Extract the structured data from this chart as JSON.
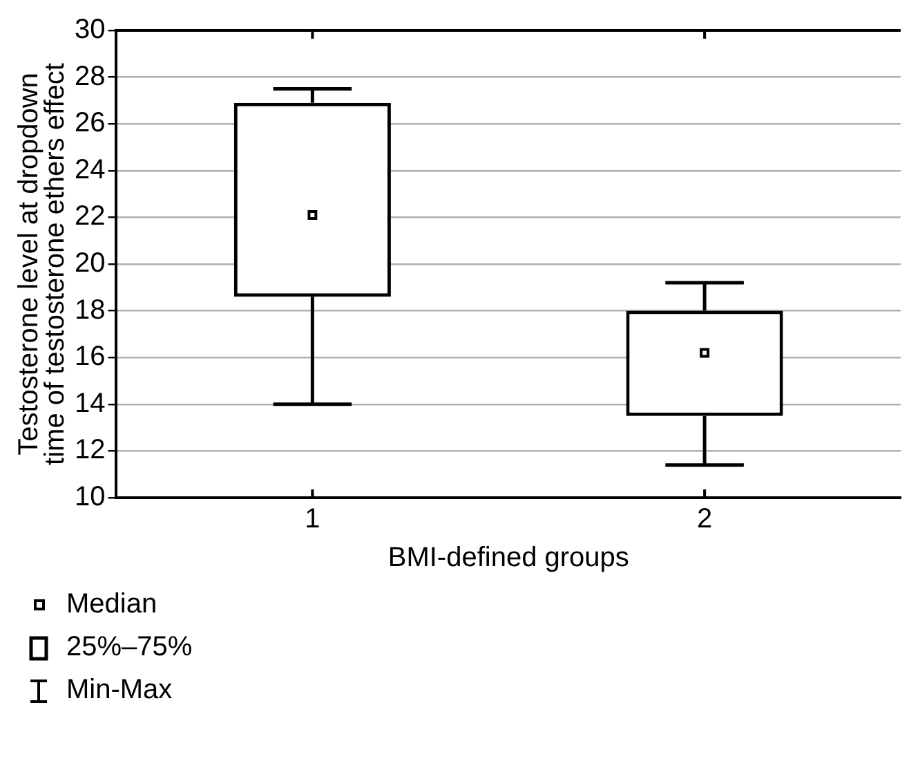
{
  "chart_data": {
    "type": "box",
    "xlabel": "BMI-defined groups",
    "ylabel": "Testosterone level at dropdown\ntime of testosterone ethers effect",
    "categories": [
      "1",
      "2"
    ],
    "series": [
      {
        "color": "#000000",
        "boxes": [
          {
            "low": 14.0,
            "q1": 18.6,
            "median": 22.1,
            "q3": 26.9,
            "high": 27.5
          },
          {
            "low": 11.4,
            "q1": 13.5,
            "median": 16.2,
            "q3": 18.0,
            "high": 19.2
          }
        ]
      }
    ],
    "ylim": [
      10,
      30
    ],
    "yticks": [
      10,
      12,
      14,
      16,
      18,
      20,
      22,
      24,
      26,
      28,
      30
    ],
    "grid": "y",
    "marker": "square",
    "annotations": [
      "Median",
      "25%–75%",
      "Min-Max"
    ]
  }
}
